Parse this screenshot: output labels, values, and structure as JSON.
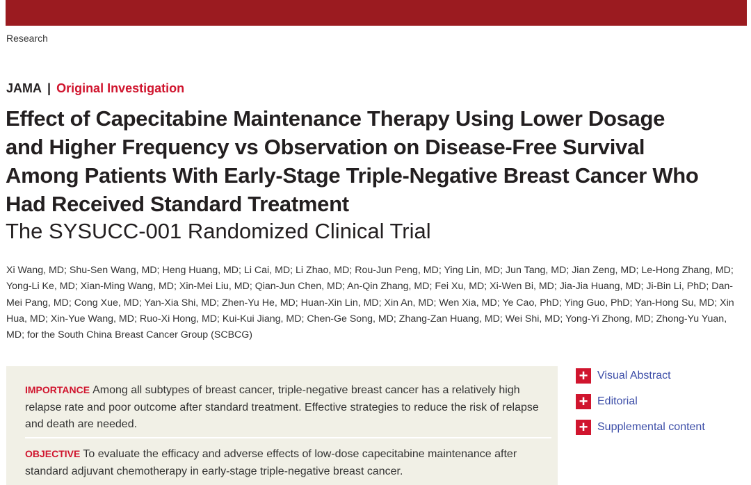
{
  "header": {
    "section": "Research"
  },
  "article": {
    "journal": "JAMA",
    "separator": "|",
    "type": "Original Investigation",
    "title": "Effect of Capecitabine Maintenance Therapy Using Lower Dosage and Higher Frequency vs Observation on Disease-Free Survival Among Patients With Early-Stage Triple-Negative Breast Cancer Who Had Received Standard Treatment",
    "subtitle": "The SYSUCC-001 Randomized Clinical Trial",
    "authors": "Xi Wang, MD; Shu-Sen Wang, MD; Heng Huang, MD; Li Cai, MD; Li Zhao, MD; Rou-Jun Peng, MD; Ying Lin, MD; Jun Tang, MD; Jian Zeng, MD; Le-Hong Zhang, MD; Yong-Li Ke, MD; Xian-Ming Wang, MD; Xin-Mei Liu, MD; Qian-Jun Chen, MD; An-Qin Zhang, MD; Fei Xu, MD; Xi-Wen Bi, MD; Jia-Jia Huang, MD; Ji-Bin Li, PhD; Dan-Mei Pang, MD; Cong Xue, MD; Yan-Xia Shi, MD; Zhen-Yu He, MD; Huan-Xin Lin, MD; Xin An, MD; Wen Xia, MD; Ye Cao, PhD; Ying Guo, PhD; Yan-Hong Su, MD; Xin Hua, MD; Xin-Yue Wang, MD; Ruo-Xi Hong, MD; Kui-Kui Jiang, MD; Chen-Ge Song, MD; Zhang-Zan Huang, MD; Wei Shi, MD; Yong-Yi Zhong, MD; Zhong-Yu Yuan, MD; for the South China Breast Cancer Group (SCBCG)"
  },
  "abstract": {
    "importance_label": "IMPORTANCE",
    "importance_text": "Among all subtypes of breast cancer, triple-negative breast cancer has a relatively high relapse rate and poor outcome after standard treatment. Effective strategies to reduce the risk of relapse and death are needed.",
    "objective_label": "OBJECTIVE",
    "objective_text": "To evaluate the efficacy and adverse effects of low-dose capecitabine maintenance after standard adjuvant chemotherapy in early-stage triple-negative breast cancer."
  },
  "links": [
    {
      "label": "Visual Abstract"
    },
    {
      "label": "Editorial"
    },
    {
      "label": "Supplemental content"
    }
  ],
  "colors": {
    "bar": "#9b1b20",
    "accent": "#d0152e",
    "link": "#3d4ea8",
    "abstract_bg": "#f1f0e6"
  }
}
